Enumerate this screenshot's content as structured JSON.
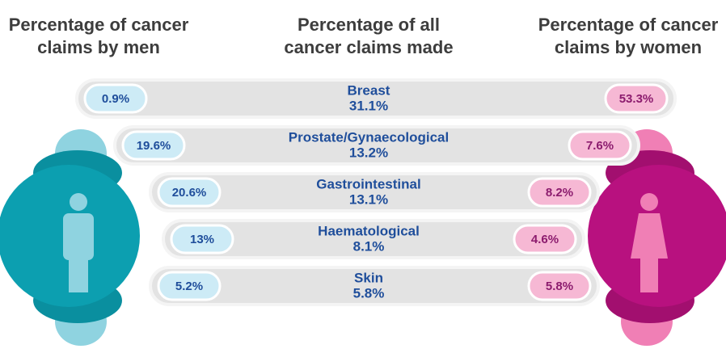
{
  "header": {
    "men": [
      "Percentage of cancer",
      "claims by men"
    ],
    "all": [
      "Percentage of all",
      "cancer claims made"
    ],
    "women": [
      "Percentage of cancer",
      "claims by women"
    ]
  },
  "rows": [
    {
      "category": "Breast",
      "all": "31.1%",
      "men": "0.9%",
      "women": "53.3%"
    },
    {
      "category": "Prostate/Gynaecological",
      "all": "13.2%",
      "men": "19.6%",
      "women": "7.6%"
    },
    {
      "category": "Gastrointestinal",
      "all": "13.1%",
      "men": "20.6%",
      "women": "8.2%"
    },
    {
      "category": "Haematological",
      "all": "8.1%",
      "men": "13%",
      "women": "4.6%"
    },
    {
      "category": "Skin",
      "all": "5.8%",
      "men": "5.2%",
      "women": "5.8%"
    }
  ]
}
